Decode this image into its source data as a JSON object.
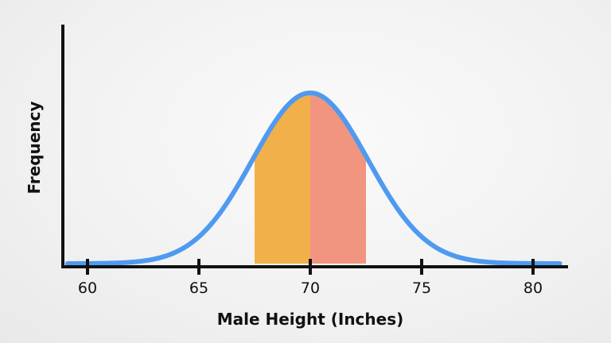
{
  "chart_data": {
    "type": "area",
    "title": "",
    "xlabel": "Male Height (Inches)",
    "ylabel": "Frequency",
    "xlim": [
      59,
      81.5
    ],
    "ticks": [
      60,
      65,
      70,
      75,
      80
    ],
    "tick_labels": [
      "60",
      "65",
      "70",
      "75",
      "80"
    ],
    "curve": {
      "type": "normal",
      "mean": 70,
      "sd": 2.6,
      "color": "#4f9af0"
    },
    "shaded_regions": [
      {
        "from": 67.5,
        "to": 70,
        "color": "#f2b04a"
      },
      {
        "from": 70,
        "to": 72.5,
        "color": "#f19580"
      }
    ],
    "grid": false,
    "legend": "none"
  }
}
